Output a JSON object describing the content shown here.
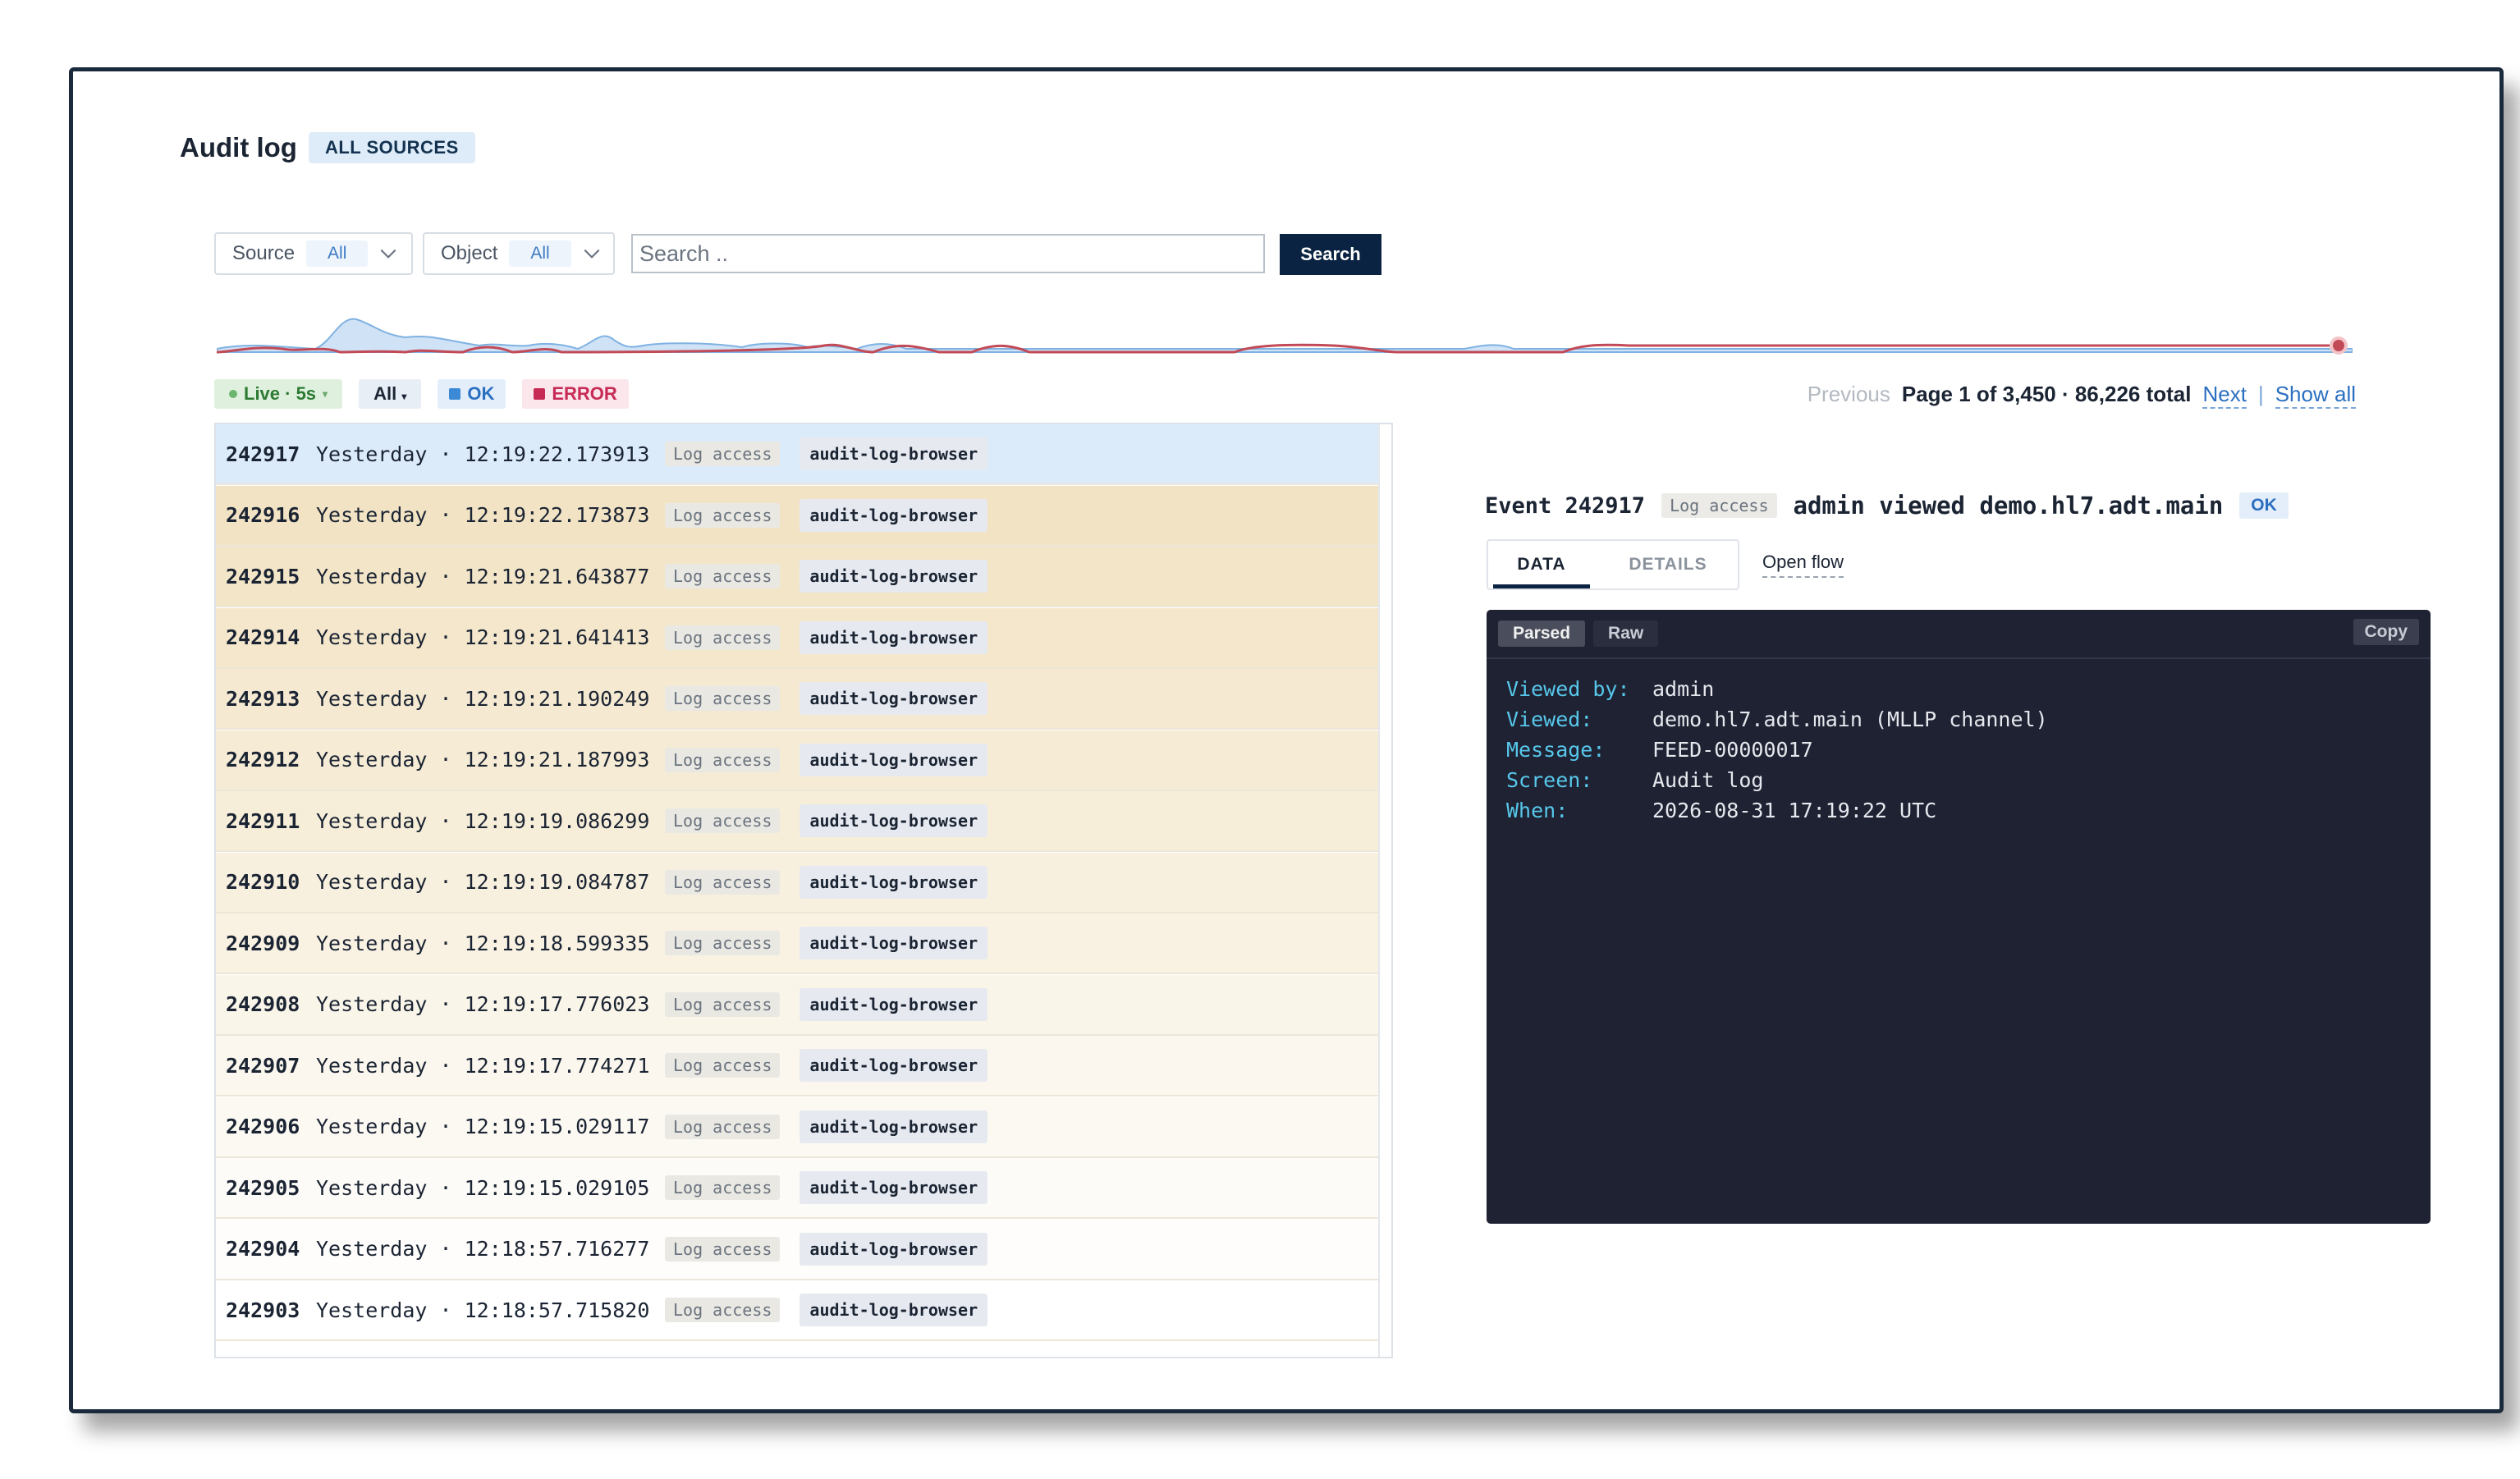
{
  "header": {
    "title": "Audit log",
    "badge": "ALL SOURCES"
  },
  "filters": {
    "source_label": "Source",
    "source_value": "All",
    "object_label": "Object",
    "object_value": "All",
    "search_placeholder": "Search ..",
    "search_button": "Search"
  },
  "status": {
    "live": "Live · 5s",
    "all": "All",
    "ok": "OK",
    "error": "ERROR"
  },
  "pager": {
    "previous": "Previous",
    "info": "Page 1 of 3,450 · 86,226 total",
    "next": "Next",
    "separator": "|",
    "show_all": "Show all"
  },
  "rows": [
    {
      "id": "242917",
      "when": "Yesterday · 12:19:22.173913",
      "kind": "Log access",
      "channel": "audit-log-browser",
      "selected": true
    },
    {
      "id": "242916",
      "when": "Yesterday · 12:19:22.173873",
      "kind": "Log access",
      "channel": "audit-log-browser"
    },
    {
      "id": "242915",
      "when": "Yesterday · 12:19:21.643877",
      "kind": "Log access",
      "channel": "audit-log-browser"
    },
    {
      "id": "242914",
      "when": "Yesterday · 12:19:21.641413",
      "kind": "Log access",
      "channel": "audit-log-browser"
    },
    {
      "id": "242913",
      "when": "Yesterday · 12:19:21.190249",
      "kind": "Log access",
      "channel": "audit-log-browser"
    },
    {
      "id": "242912",
      "when": "Yesterday · 12:19:21.187993",
      "kind": "Log access",
      "channel": "audit-log-browser"
    },
    {
      "id": "242911",
      "when": "Yesterday · 12:19:19.086299",
      "kind": "Log access",
      "channel": "audit-log-browser"
    },
    {
      "id": "242910",
      "when": "Yesterday · 12:19:19.084787",
      "kind": "Log access",
      "channel": "audit-log-browser"
    },
    {
      "id": "242909",
      "when": "Yesterday · 12:19:18.599335",
      "kind": "Log access",
      "channel": "audit-log-browser"
    },
    {
      "id": "242908",
      "when": "Yesterday · 12:19:17.776023",
      "kind": "Log access",
      "channel": "audit-log-browser"
    },
    {
      "id": "242907",
      "when": "Yesterday · 12:19:17.774271",
      "kind": "Log access",
      "channel": "audit-log-browser"
    },
    {
      "id": "242906",
      "when": "Yesterday · 12:19:15.029117",
      "kind": "Log access",
      "channel": "audit-log-browser"
    },
    {
      "id": "242905",
      "when": "Yesterday · 12:19:15.029105",
      "kind": "Log access",
      "channel": "audit-log-browser"
    },
    {
      "id": "242904",
      "when": "Yesterday · 12:18:57.716277",
      "kind": "Log access",
      "channel": "audit-log-browser"
    },
    {
      "id": "242903",
      "when": "Yesterday · 12:18:57.715820",
      "kind": "Log access",
      "channel": "audit-log-browser"
    }
  ],
  "detail": {
    "title": "Event 242917",
    "kind": "Log access",
    "description": "admin viewed demo.hl7.adt.main",
    "status": "OK",
    "tabs": [
      "DATA",
      "DETAILS"
    ],
    "open_flow": "Open flow",
    "console": {
      "parsed": "Parsed",
      "raw": "Raw",
      "copy": "Copy",
      "fields": [
        {
          "key": "Viewed by:",
          "value": "admin"
        },
        {
          "key": "Viewed:",
          "value": "demo.hl7.adt.main (MLLP channel)"
        },
        {
          "key": "Message:",
          "value": "FEED-00000017"
        },
        {
          "key": "Screen:",
          "value": "Audit log"
        },
        {
          "key": "When:",
          "value": "2026-08-31 17:19:22 UTC"
        }
      ]
    }
  },
  "colors": {
    "accent": "#0b2342",
    "link": "#2b6fc0",
    "ok": "#2b6fc0",
    "error": "#c72a55",
    "live": "#2d7a33",
    "selected_row": "#dcebfa",
    "console_bg": "#1f2233",
    "console_key": "#57c7ea"
  },
  "icons": {
    "dropdown": "chevron-down-icon",
    "live": "status-dot-icon",
    "ok": "square-icon",
    "error": "square-icon"
  }
}
